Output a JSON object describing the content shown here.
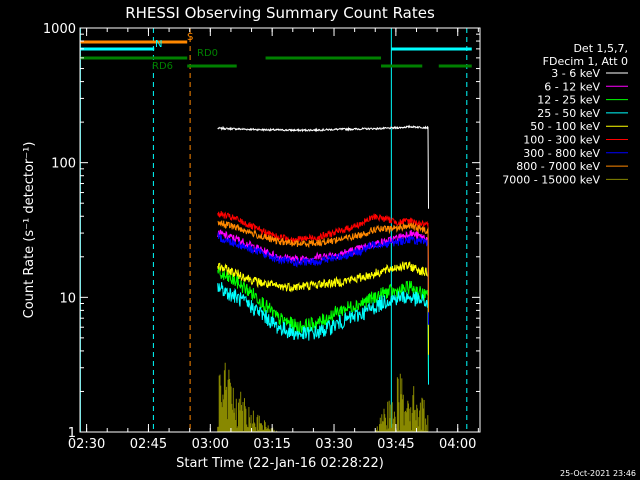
{
  "chart_data": {
    "type": "line",
    "title": "RHESSI Observing Summary Count Rates",
    "xlabel": "Start Time (22-Jan-16 02:28:22)",
    "ylabel": "Count Rate (s⁻¹ detector⁻¹)",
    "yscale": "log",
    "ylim": [
      1,
      1000
    ],
    "xlim_minutes_after_0228": [
      0,
      97
    ],
    "x_ticks": [
      {
        "label": "02:30",
        "minute": 1.6
      },
      {
        "label": "02:45",
        "minute": 16.6
      },
      {
        "label": "03:00",
        "minute": 31.6
      },
      {
        "label": "03:15",
        "minute": 46.6
      },
      {
        "label": "03:30",
        "minute": 61.6
      },
      {
        "label": "03:45",
        "minute": 76.6
      },
      {
        "label": "04:00",
        "minute": 91.6
      }
    ],
    "y_ticks": [
      {
        "label": "1",
        "value": 1
      },
      {
        "label": "10",
        "value": 10
      },
      {
        "label": "100",
        "value": 100
      },
      {
        "label": "1000",
        "value": 1000
      }
    ],
    "legend": {
      "placement": "right",
      "header": [
        "Det 1,5,7,",
        "FDecim 1, Att 0"
      ]
    },
    "series": [
      {
        "name": "3 - 6 keV",
        "color": "#ffffff",
        "values": [
          180,
          178,
          176,
          175,
          174,
          175,
          177,
          178,
          179,
          180,
          182,
          185,
          182
        ]
      },
      {
        "name": "6 - 12 keV",
        "color": "#ff00ff",
        "values": [
          30,
          27,
          23,
          20,
          19,
          20,
          21,
          23,
          25,
          26,
          28,
          30,
          27
        ]
      },
      {
        "name": "12 - 25 keV",
        "color": "#00ff00",
        "values": [
          15,
          13,
          10,
          7,
          6,
          6.5,
          8,
          9,
          10,
          11,
          11,
          12,
          10
        ]
      },
      {
        "name": "25 - 50 keV",
        "color": "#00ffff",
        "values": [
          12,
          10,
          8,
          6,
          5.3,
          5.5,
          6.5,
          7.5,
          8.5,
          9.5,
          10,
          10,
          9
        ]
      },
      {
        "name": "50 - 100 keV",
        "color": "#ffff00",
        "values": [
          17,
          15,
          13,
          12,
          12,
          12.5,
          13,
          14,
          15,
          16,
          17,
          17,
          15
        ]
      },
      {
        "name": "100 - 300 keV",
        "color": "#ff0000",
        "values": [
          42,
          38,
          32,
          28,
          27,
          28,
          31,
          35,
          40,
          38,
          36,
          37,
          34
        ]
      },
      {
        "name": "300 - 800 keV",
        "color": "#0000ff",
        "values": [
          28,
          25,
          22,
          19,
          18,
          18.5,
          20,
          22,
          25,
          25,
          26,
          27,
          25
        ]
      },
      {
        "name": "800 - 7000 keV",
        "color": "#ff8800",
        "values": [
          36,
          33,
          29,
          26,
          25,
          25.5,
          27,
          29,
          32,
          32,
          33,
          34,
          31
        ]
      },
      {
        "name": "7000 - 15000 keV",
        "color": "#888800",
        "values": [
          3.6,
          2.2,
          1.3,
          1,
          1,
          1,
          1,
          1,
          1,
          1.6,
          2.5,
          2.2,
          1.5
        ]
      }
    ],
    "x_minutes": [
      33.4,
      38,
      43,
      48,
      53,
      58,
      63,
      68,
      71.5,
      74.5,
      77.5,
      80,
      84.5
    ],
    "flag_bars": [
      {
        "label": "S",
        "color": "#ff8800",
        "segments": [
          [
            0,
            26
          ]
        ]
      },
      {
        "label": "N",
        "color": "#00ffff",
        "segments": [
          [
            0,
            18
          ],
          [
            75.5,
            95
          ]
        ]
      },
      {
        "label": "RD0",
        "color": "#008000",
        "segments": [
          [
            0,
            26
          ],
          [
            45,
            73
          ]
        ]
      },
      {
        "label": "RD6",
        "color": "#008000",
        "segments": [
          [
            26,
            38
          ],
          [
            73,
            83
          ],
          [
            87,
            95
          ]
        ]
      }
    ],
    "vertical_markers": [
      {
        "minute": 0.1,
        "color": "#00ffff",
        "style": "solid"
      },
      {
        "minute": 17.8,
        "color": "#00ffff",
        "style": "dashed"
      },
      {
        "minute": 26.7,
        "color": "#ff8800",
        "style": "dashed"
      },
      {
        "minute": 75.5,
        "color": "#00ffff",
        "style": "solid"
      },
      {
        "minute": 93.8,
        "color": "#00ffff",
        "style": "dashed"
      }
    ]
  },
  "footer": {
    "timestamp": "25-Oct-2021 23:46"
  }
}
